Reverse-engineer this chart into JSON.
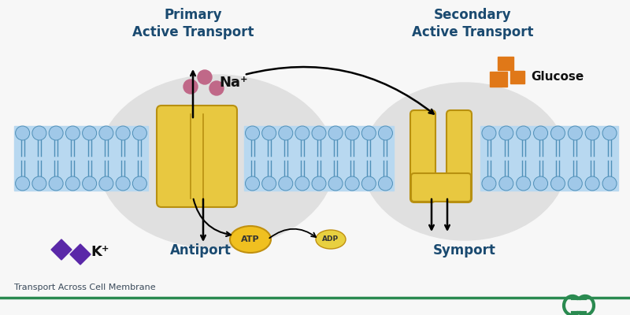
{
  "bg_color": "#f7f7f7",
  "mem_color": "#b8d8f0",
  "mem_stroke": "#6aaad4",
  "head_color": "#a0c8e8",
  "head_stroke": "#5090b8",
  "protein_color": "#e8c840",
  "protein_stroke": "#b89010",
  "title_left": "Primary\nActive Transport",
  "title_right": "Secondary\nActive Transport",
  "title_color": "#1a4a70",
  "title_fontsize": 12,
  "label_antiport": "Antiport",
  "label_symport": "Symport",
  "label_color": "#1a4a70",
  "label_fontsize": 12,
  "na_label": "Na⁺",
  "k_label": "K⁺",
  "glucose_label": "Glucose",
  "atp_label": "ATP",
  "adp_label": "ADP",
  "na_dot_color": "#c06888",
  "k_color": "#5a28a8",
  "glucose_color": "#e07818",
  "atp_color": "#f0c020",
  "atp_stroke": "#c09010",
  "adp_color": "#e8d040",
  "footer_text": "Transport Across Cell Membrane",
  "footer_color": "#3a4a5a",
  "footer_line_color": "#2a8a50",
  "gg_color": "#2a8a50",
  "bg_circle1_color": "#e0e0e0",
  "bg_circle2_color": "#e0e0e0"
}
